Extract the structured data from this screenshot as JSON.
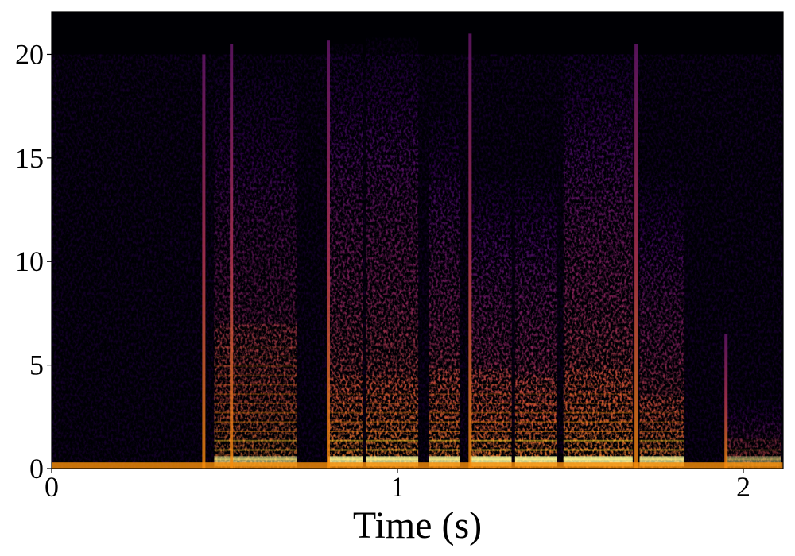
{
  "chart_data": {
    "type": "heatmap",
    "title": "",
    "xlabel": "Time (s)",
    "ylabel": "",
    "xlim": [
      0,
      2.115
    ],
    "ylim": [
      0,
      22.05
    ],
    "xticks": [
      "0",
      "1",
      "2"
    ],
    "xtick_values": [
      0,
      1,
      2
    ],
    "yticks": [
      "0",
      "5",
      "10",
      "15",
      "20"
    ],
    "ytick_values": [
      0,
      5,
      10,
      15,
      20
    ],
    "colormap": "inferno",
    "background_noise": {
      "t": [
        0,
        2.115
      ],
      "fmax": 20,
      "level": 0.12
    },
    "low_band": {
      "fmax": 0.3,
      "level": 0.8
    },
    "segments": [
      {
        "t0": 0.47,
        "t1": 0.71,
        "fmax": 19,
        "bright_fmax": 7,
        "level": 0.55
      },
      {
        "t0": 0.8,
        "t1": 0.9,
        "fmax": 20.5,
        "bright_fmax": 4.5,
        "level": 0.75
      },
      {
        "t0": 0.91,
        "t1": 1.06,
        "fmax": 20.8,
        "bright_fmax": 4.5,
        "level": 0.75
      },
      {
        "t0": 1.09,
        "t1": 1.18,
        "fmax": 17,
        "bright_fmax": 4.8,
        "level": 0.75
      },
      {
        "t0": 1.21,
        "t1": 1.33,
        "fmax": 14,
        "bright_fmax": 4.8,
        "level": 0.8
      },
      {
        "t0": 1.34,
        "t1": 1.46,
        "fmax": 14,
        "bright_fmax": 4.5,
        "level": 0.8
      },
      {
        "t0": 1.48,
        "t1": 1.68,
        "fmax": 20,
        "bright_fmax": 4.8,
        "level": 0.8
      },
      {
        "t0": 1.7,
        "t1": 1.83,
        "fmax": 14,
        "bright_fmax": 3.5,
        "level": 0.7
      },
      {
        "t0": 1.95,
        "t1": 2.11,
        "fmax": 3.3,
        "bright_fmax": 1.5,
        "level": 0.4
      }
    ],
    "transients": [
      {
        "t": 0.44,
        "fmax": 20
      },
      {
        "t": 0.52,
        "fmax": 20.5
      },
      {
        "t": 0.8,
        "fmax": 20.7
      },
      {
        "t": 1.21,
        "fmax": 21
      },
      {
        "t": 1.69,
        "fmax": 20.5
      },
      {
        "t": 1.95,
        "fmax": 6.5
      }
    ]
  }
}
